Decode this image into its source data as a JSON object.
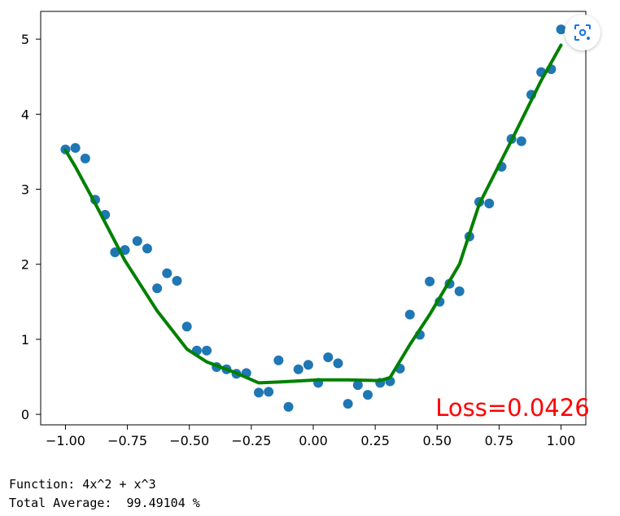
{
  "chart_data": {
    "type": "scatter",
    "xlim": [
      -1.1,
      1.1
    ],
    "ylim": [
      -0.14,
      5.37
    ],
    "x_ticks": [
      "−1.00",
      "−0.75",
      "−0.50",
      "−0.25",
      "0.00",
      "0.25",
      "0.50",
      "0.75",
      "1.00"
    ],
    "x_tick_values": [
      -1.0,
      -0.75,
      -0.5,
      -0.25,
      0.0,
      0.25,
      0.5,
      0.75,
      1.0
    ],
    "y_ticks": [
      "0",
      "1",
      "2",
      "3",
      "4",
      "5"
    ],
    "y_tick_values": [
      0,
      1,
      2,
      3,
      4,
      5
    ],
    "grid": false,
    "series": [
      {
        "type": "scatter",
        "color": "#1f77b4",
        "points": [
          [
            -1.0,
            3.53
          ],
          [
            -0.96,
            3.55
          ],
          [
            -0.92,
            3.41
          ],
          [
            -0.88,
            2.86
          ],
          [
            -0.84,
            2.66
          ],
          [
            -0.8,
            2.16
          ],
          [
            -0.76,
            2.19
          ],
          [
            -0.71,
            2.31
          ],
          [
            -0.67,
            2.21
          ],
          [
            -0.63,
            1.68
          ],
          [
            -0.59,
            1.88
          ],
          [
            -0.55,
            1.78
          ],
          [
            -0.51,
            1.17
          ],
          [
            -0.47,
            0.85
          ],
          [
            -0.43,
            0.85
          ],
          [
            -0.39,
            0.63
          ],
          [
            -0.35,
            0.6
          ],
          [
            -0.31,
            0.54
          ],
          [
            -0.27,
            0.55
          ],
          [
            -0.22,
            0.29
          ],
          [
            -0.18,
            0.3
          ],
          [
            -0.14,
            0.72
          ],
          [
            -0.1,
            0.1
          ],
          [
            -0.06,
            0.6
          ],
          [
            -0.02,
            0.66
          ],
          [
            0.02,
            0.42
          ],
          [
            0.06,
            0.76
          ],
          [
            0.1,
            0.68
          ],
          [
            0.14,
            0.14
          ],
          [
            0.18,
            0.39
          ],
          [
            0.22,
            0.26
          ],
          [
            0.27,
            0.42
          ],
          [
            0.31,
            0.44
          ],
          [
            0.35,
            0.61
          ],
          [
            0.39,
            1.33
          ],
          [
            0.43,
            1.06
          ],
          [
            0.47,
            1.77
          ],
          [
            0.51,
            1.5
          ],
          [
            0.55,
            1.74
          ],
          [
            0.59,
            1.64
          ],
          [
            0.63,
            2.37
          ],
          [
            0.67,
            2.83
          ],
          [
            0.71,
            2.81
          ],
          [
            0.76,
            3.3
          ],
          [
            0.8,
            3.67
          ],
          [
            0.84,
            3.64
          ],
          [
            0.88,
            4.26
          ],
          [
            0.92,
            4.56
          ],
          [
            0.96,
            4.6
          ],
          [
            1.0,
            5.13
          ]
        ]
      },
      {
        "type": "line",
        "color": "#008000",
        "points": [
          [
            -1.0,
            3.52
          ],
          [
            -0.96,
            3.3
          ],
          [
            -0.88,
            2.81
          ],
          [
            -0.76,
            2.05
          ],
          [
            -0.63,
            1.38
          ],
          [
            -0.51,
            0.87
          ],
          [
            -0.43,
            0.7
          ],
          [
            -0.31,
            0.55
          ],
          [
            -0.22,
            0.42
          ],
          [
            -0.14,
            0.43
          ],
          [
            0.02,
            0.46
          ],
          [
            0.14,
            0.46
          ],
          [
            0.27,
            0.45
          ],
          [
            0.31,
            0.49
          ],
          [
            0.39,
            0.93
          ],
          [
            0.47,
            1.33
          ],
          [
            0.59,
            2.0
          ],
          [
            0.67,
            2.8
          ],
          [
            0.8,
            3.65
          ],
          [
            0.92,
            4.45
          ],
          [
            1.0,
            4.92
          ]
        ]
      }
    ],
    "annotation": {
      "text": "Loss=0.0426",
      "x": 0.5,
      "y": 0.0,
      "color": "#ff0000"
    }
  },
  "output": {
    "function_line": "Function: 4x^2 + x^3",
    "average_line": "Total Average:  99.49104 %"
  },
  "toolbar": {
    "lens_icon": "lens-icon"
  }
}
